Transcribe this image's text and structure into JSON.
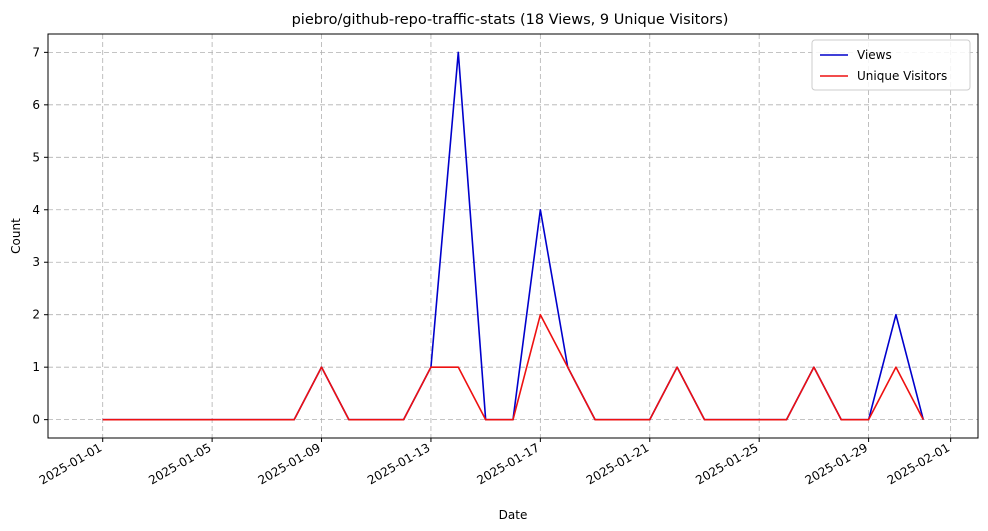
{
  "chart_data": {
    "type": "line",
    "title": "piebro/github-repo-traffic-stats (18 Views, 9 Unique Visitors)",
    "xlabel": "Date",
    "ylabel": "Count",
    "x": [
      "2025-01-01",
      "2025-01-02",
      "2025-01-03",
      "2025-01-04",
      "2025-01-05",
      "2025-01-06",
      "2025-01-07",
      "2025-01-08",
      "2025-01-09",
      "2025-01-10",
      "2025-01-11",
      "2025-01-12",
      "2025-01-13",
      "2025-01-14",
      "2025-01-15",
      "2025-01-16",
      "2025-01-17",
      "2025-01-18",
      "2025-01-19",
      "2025-01-20",
      "2025-01-21",
      "2025-01-22",
      "2025-01-23",
      "2025-01-24",
      "2025-01-25",
      "2025-01-26",
      "2025-01-27",
      "2025-01-28",
      "2025-01-29",
      "2025-01-30",
      "2025-01-31"
    ],
    "series": [
      {
        "name": "Views",
        "color": "#0000cc",
        "values": [
          0,
          0,
          0,
          0,
          0,
          0,
          0,
          0,
          1,
          0,
          0,
          0,
          1,
          7,
          0,
          0,
          4,
          1,
          0,
          0,
          0,
          1,
          0,
          0,
          0,
          0,
          1,
          0,
          0,
          2,
          0
        ]
      },
      {
        "name": "Unique Visitors",
        "color": "#ee1111",
        "values": [
          0,
          0,
          0,
          0,
          0,
          0,
          0,
          0,
          1,
          0,
          0,
          0,
          1,
          1,
          0,
          0,
          2,
          1,
          0,
          0,
          0,
          1,
          0,
          0,
          0,
          0,
          1,
          0,
          0,
          1,
          0
        ]
      }
    ],
    "xlim": [
      "2024-12-30",
      "2025-02-02"
    ],
    "ylim": [
      -0.35,
      7.35
    ],
    "x_ticks": [
      "2025-01-01",
      "2025-01-05",
      "2025-01-09",
      "2025-01-13",
      "2025-01-17",
      "2025-01-21",
      "2025-01-25",
      "2025-01-29",
      "2025-02-01"
    ],
    "y_ticks": [
      0,
      1,
      2,
      3,
      4,
      5,
      6,
      7
    ],
    "grid": true,
    "legend_position": "top-right"
  }
}
